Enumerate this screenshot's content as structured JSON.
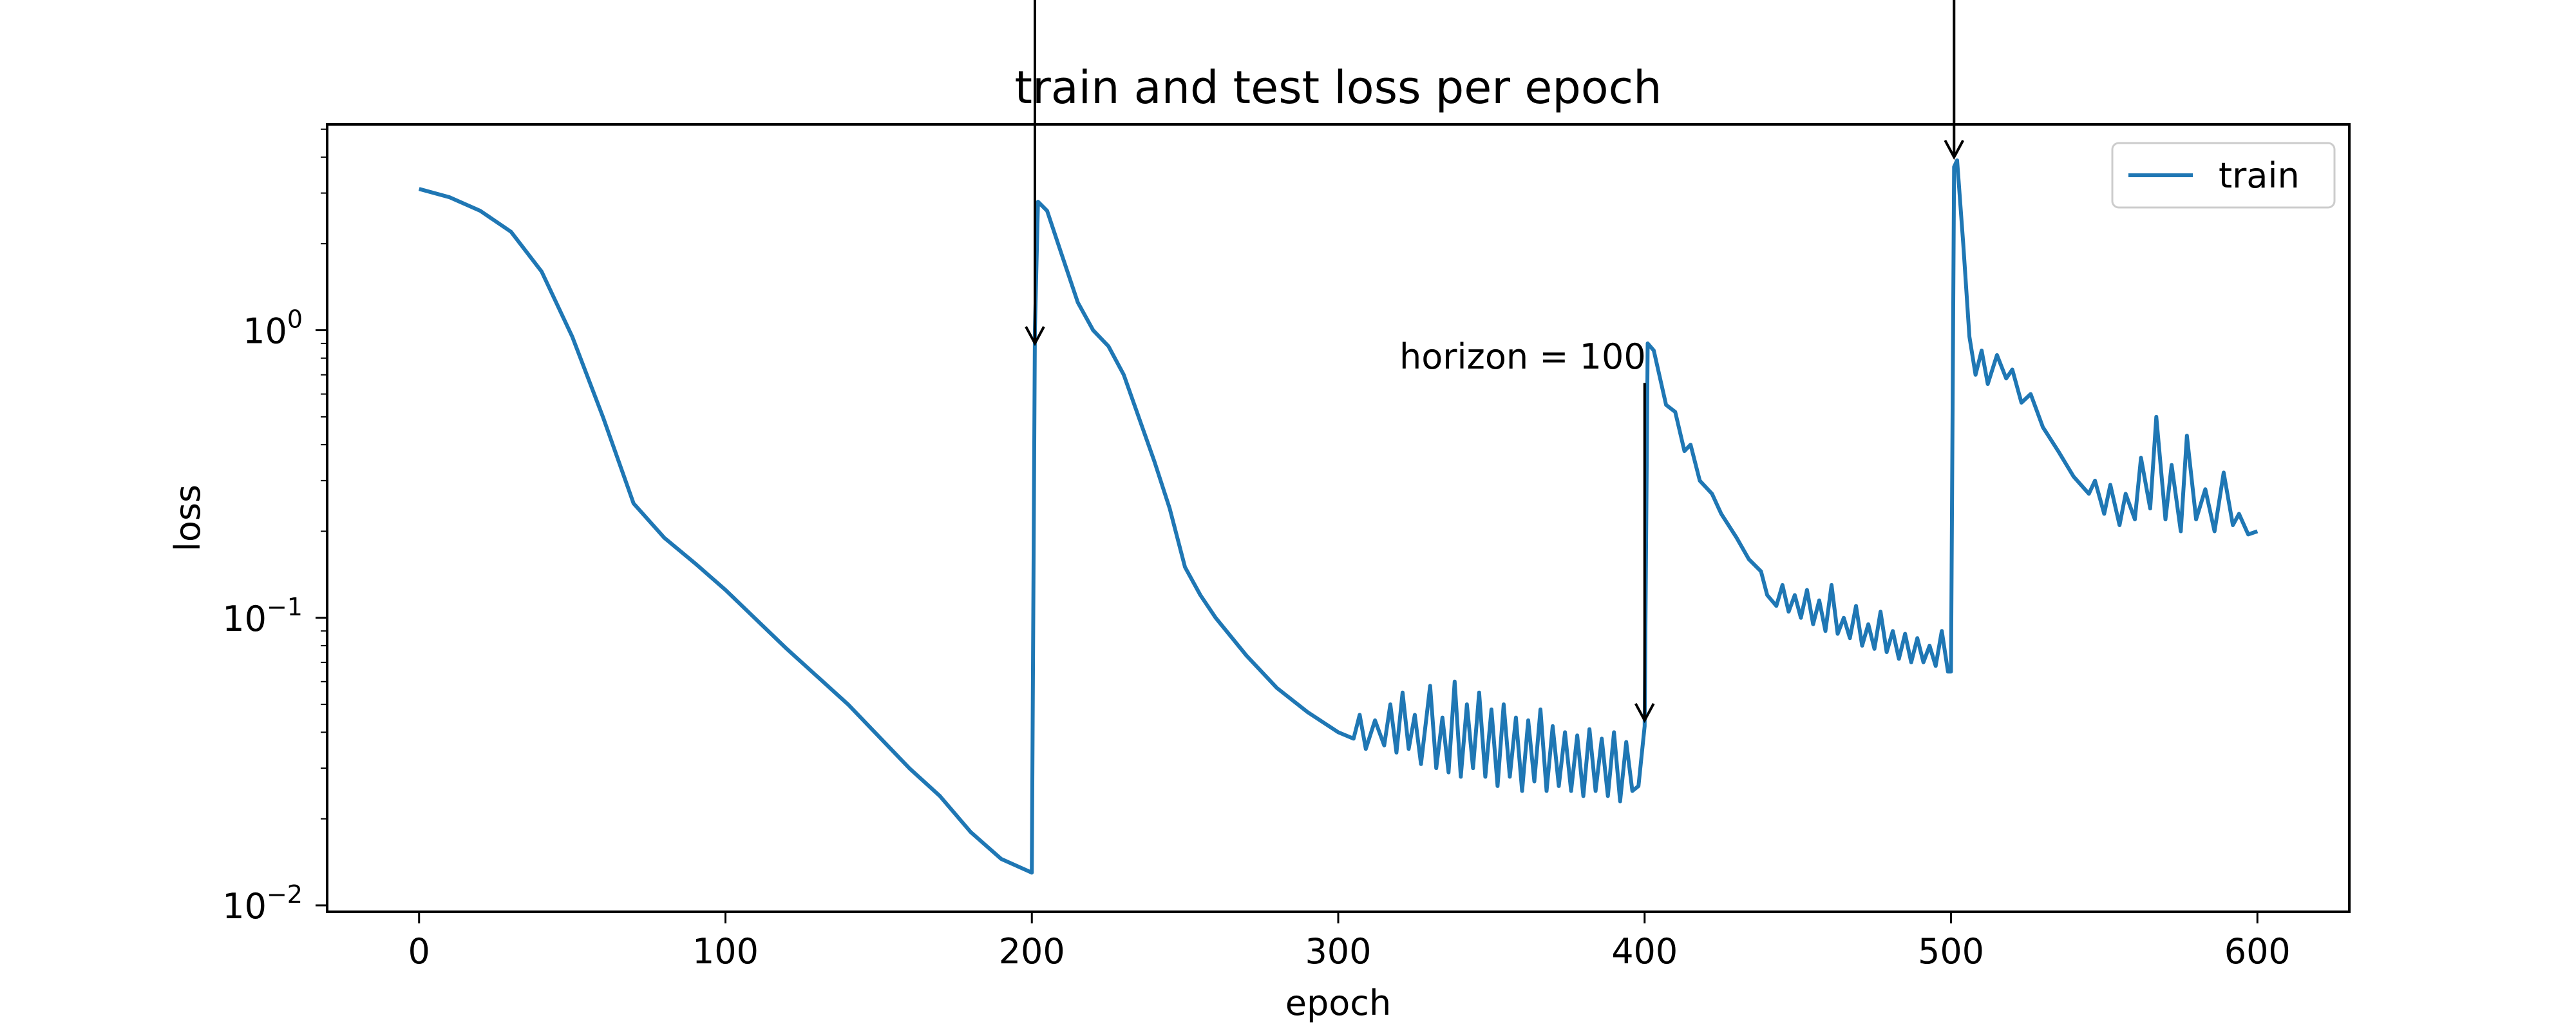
{
  "chart_data": {
    "type": "line",
    "title": "train and test loss per epoch",
    "xlabel": "epoch",
    "ylabel": "loss",
    "xlim": [
      -30,
      630
    ],
    "ylim": [
      0.0095,
      5.2
    ],
    "yscale": "log",
    "x_ticks": [
      0,
      100,
      200,
      300,
      400,
      500,
      600
    ],
    "y_ticks": [
      {
        "value": 0.01,
        "base": "10",
        "exp": "−2"
      },
      {
        "value": 0.1,
        "base": "10",
        "exp": "−1"
      },
      {
        "value": 1,
        "base": "10",
        "exp": "0"
      }
    ],
    "legend": {
      "placement": "top-right",
      "entries": [
        "train"
      ]
    },
    "grid": false,
    "series": [
      {
        "name": "train",
        "color": "#1f77b4",
        "points": [
          [
            0,
            3.1
          ],
          [
            10,
            2.9
          ],
          [
            20,
            2.6
          ],
          [
            30,
            2.2
          ],
          [
            40,
            1.6
          ],
          [
            50,
            0.95
          ],
          [
            60,
            0.5
          ],
          [
            70,
            0.25
          ],
          [
            80,
            0.19
          ],
          [
            90,
            0.155
          ],
          [
            100,
            0.125
          ],
          [
            120,
            0.078
          ],
          [
            140,
            0.05
          ],
          [
            160,
            0.03
          ],
          [
            170,
            0.024
          ],
          [
            180,
            0.018
          ],
          [
            190,
            0.0145
          ],
          [
            200,
            0.013
          ],
          [
            201,
            1.0
          ],
          [
            202,
            2.8
          ],
          [
            205,
            2.6
          ],
          [
            210,
            1.8
          ],
          [
            215,
            1.25
          ],
          [
            220,
            1.0
          ],
          [
            225,
            0.88
          ],
          [
            230,
            0.7
          ],
          [
            240,
            0.35
          ],
          [
            245,
            0.24
          ],
          [
            250,
            0.15
          ],
          [
            255,
            0.12
          ],
          [
            260,
            0.1
          ],
          [
            270,
            0.074
          ],
          [
            280,
            0.057
          ],
          [
            290,
            0.047
          ],
          [
            300,
            0.04
          ],
          [
            305,
            0.038
          ],
          [
            307,
            0.046
          ],
          [
            309,
            0.035
          ],
          [
            312,
            0.044
          ],
          [
            315,
            0.036
          ],
          [
            317,
            0.05
          ],
          [
            319,
            0.034
          ],
          [
            321,
            0.055
          ],
          [
            323,
            0.035
          ],
          [
            325,
            0.046
          ],
          [
            327,
            0.031
          ],
          [
            330,
            0.058
          ],
          [
            332,
            0.03
          ],
          [
            334,
            0.045
          ],
          [
            336,
            0.029
          ],
          [
            338,
            0.06
          ],
          [
            340,
            0.028
          ],
          [
            342,
            0.05
          ],
          [
            344,
            0.03
          ],
          [
            346,
            0.055
          ],
          [
            348,
            0.028
          ],
          [
            350,
            0.048
          ],
          [
            352,
            0.026
          ],
          [
            354,
            0.05
          ],
          [
            356,
            0.028
          ],
          [
            358,
            0.045
          ],
          [
            360,
            0.025
          ],
          [
            362,
            0.044
          ],
          [
            364,
            0.027
          ],
          [
            366,
            0.048
          ],
          [
            368,
            0.025
          ],
          [
            370,
            0.042
          ],
          [
            372,
            0.026
          ],
          [
            374,
            0.04
          ],
          [
            376,
            0.025
          ],
          [
            378,
            0.039
          ],
          [
            380,
            0.024
          ],
          [
            382,
            0.041
          ],
          [
            384,
            0.025
          ],
          [
            386,
            0.038
          ],
          [
            388,
            0.024
          ],
          [
            390,
            0.04
          ],
          [
            392,
            0.023
          ],
          [
            394,
            0.037
          ],
          [
            396,
            0.025
          ],
          [
            398,
            0.026
          ],
          [
            400,
            0.042
          ],
          [
            401,
            0.9
          ],
          [
            403,
            0.85
          ],
          [
            407,
            0.55
          ],
          [
            410,
            0.52
          ],
          [
            413,
            0.38
          ],
          [
            415,
            0.4
          ],
          [
            418,
            0.3
          ],
          [
            422,
            0.27
          ],
          [
            425,
            0.23
          ],
          [
            430,
            0.19
          ],
          [
            434,
            0.16
          ],
          [
            438,
            0.145
          ],
          [
            440,
            0.12
          ],
          [
            443,
            0.11
          ],
          [
            445,
            0.13
          ],
          [
            447,
            0.105
          ],
          [
            449,
            0.12
          ],
          [
            451,
            0.1
          ],
          [
            453,
            0.125
          ],
          [
            455,
            0.095
          ],
          [
            457,
            0.115
          ],
          [
            459,
            0.09
          ],
          [
            461,
            0.13
          ],
          [
            463,
            0.088
          ],
          [
            465,
            0.1
          ],
          [
            467,
            0.085
          ],
          [
            469,
            0.11
          ],
          [
            471,
            0.08
          ],
          [
            473,
            0.095
          ],
          [
            475,
            0.078
          ],
          [
            477,
            0.105
          ],
          [
            479,
            0.076
          ],
          [
            481,
            0.09
          ],
          [
            483,
            0.072
          ],
          [
            485,
            0.088
          ],
          [
            487,
            0.07
          ],
          [
            489,
            0.085
          ],
          [
            491,
            0.07
          ],
          [
            493,
            0.08
          ],
          [
            495,
            0.068
          ],
          [
            497,
            0.09
          ],
          [
            499,
            0.065
          ],
          [
            500,
            0.065
          ],
          [
            501,
            3.7
          ],
          [
            502,
            3.9
          ],
          [
            504,
            2.0
          ],
          [
            506,
            0.95
          ],
          [
            508,
            0.7
          ],
          [
            510,
            0.85
          ],
          [
            512,
            0.65
          ],
          [
            515,
            0.82
          ],
          [
            518,
            0.68
          ],
          [
            520,
            0.73
          ],
          [
            523,
            0.56
          ],
          [
            526,
            0.6
          ],
          [
            530,
            0.46
          ],
          [
            535,
            0.38
          ],
          [
            540,
            0.31
          ],
          [
            545,
            0.27
          ],
          [
            547,
            0.3
          ],
          [
            550,
            0.23
          ],
          [
            552,
            0.29
          ],
          [
            555,
            0.21
          ],
          [
            557,
            0.27
          ],
          [
            560,
            0.22
          ],
          [
            562,
            0.36
          ],
          [
            565,
            0.24
          ],
          [
            567,
            0.5
          ],
          [
            570,
            0.22
          ],
          [
            572,
            0.34
          ],
          [
            575,
            0.2
          ],
          [
            577,
            0.43
          ],
          [
            580,
            0.22
          ],
          [
            583,
            0.28
          ],
          [
            586,
            0.2
          ],
          [
            589,
            0.32
          ],
          [
            592,
            0.21
          ],
          [
            594,
            0.23
          ],
          [
            597,
            0.195
          ],
          [
            600,
            0.2
          ]
        ]
      }
    ],
    "annotations": [
      {
        "text": "",
        "xy": [
          201,
          0.9
        ],
        "from_top": true
      },
      {
        "text": "horizon = 100",
        "xy": [
          400,
          0.044
        ],
        "text_pos": [
          400,
          0.72
        ]
      },
      {
        "text": "",
        "xy": [
          501,
          4.0
        ],
        "from_top": true
      }
    ]
  }
}
